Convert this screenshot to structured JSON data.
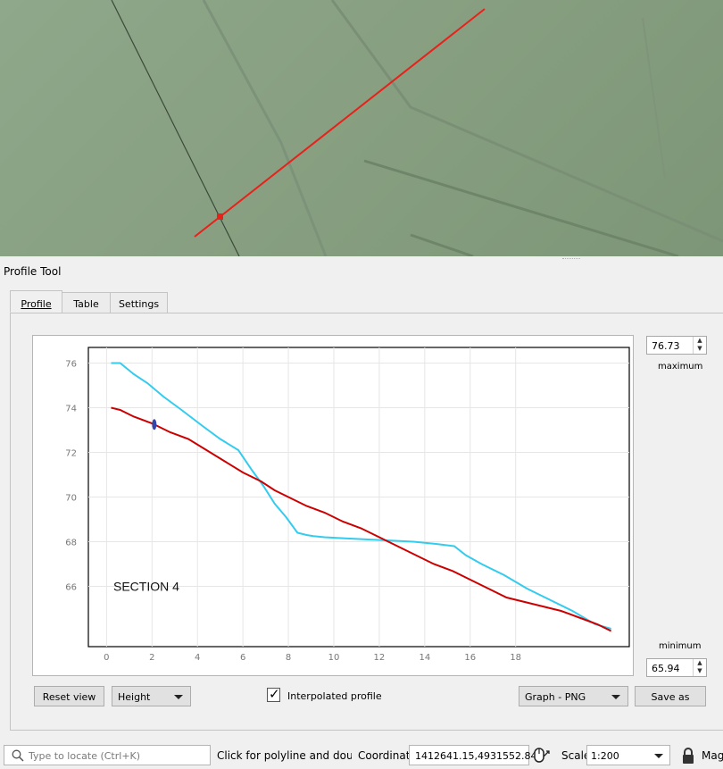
{
  "panel": {
    "title": "Profile Tool"
  },
  "tabs": [
    {
      "label": "Profile",
      "active": true
    },
    {
      "label": "Table",
      "active": false
    },
    {
      "label": "Settings",
      "active": false
    }
  ],
  "axis_controls": {
    "maximum_value": "76.73",
    "maximum_label": "maximum",
    "minimum_value": "65.94",
    "minimum_label": "minimum"
  },
  "controls": {
    "reset_label": "Reset view",
    "plot_variable": "Height",
    "interpolated_checked": true,
    "interpolated_label": "Interpolated profile",
    "export_format": "Graph - PNG",
    "save_label": "Save as"
  },
  "statusbar": {
    "locator_placeholder": "Type to locate (Ctrl+K)",
    "message": "Click for polyline and double clic",
    "coordinate_label": "Coordinate",
    "coordinate_value": "1412641.15,4931552.84",
    "scale_label": "Scale",
    "scale_value": "1:200",
    "magnifier_label": "Magr"
  },
  "colors": {
    "map_background": "#88a081",
    "profile_line": "#e8211b",
    "series_red": "#cc0000",
    "series_cyan": "#33ccee",
    "cursor_marker": "#3344aa"
  },
  "chart_data": {
    "type": "line",
    "annotation": "SECTION 4",
    "xticks": [
      "0",
      "2",
      "4",
      "6",
      "8",
      "10",
      "12",
      "14",
      "16",
      "18"
    ],
    "yticks": [
      "76",
      "74",
      "72",
      "70",
      "68",
      "66"
    ],
    "xlim": [
      -0.8,
      23
    ],
    "ylim": [
      63.3,
      76.7
    ],
    "grid": true,
    "cursor_x": 2.1,
    "series": [
      {
        "color": "#33ccee",
        "x": [
          0.2,
          0.6,
          1.2,
          1.8,
          2.5,
          3.3,
          4.2,
          5.0,
          5.8,
          6.4,
          6.9,
          7.4,
          7.9,
          8.4,
          8.8,
          9.1,
          9.6,
          10.5,
          11.5,
          12.5,
          13.5,
          14.5,
          15.3,
          15.8,
          16.5,
          17.5,
          18.5,
          19.5,
          20.5,
          21.5,
          22.2
        ],
        "y": [
          76.0,
          76.0,
          75.5,
          75.1,
          74.5,
          73.9,
          73.2,
          72.6,
          72.1,
          71.2,
          70.5,
          69.7,
          69.1,
          68.4,
          68.3,
          68.25,
          68.2,
          68.15,
          68.1,
          68.05,
          68.0,
          67.9,
          67.8,
          67.4,
          67.0,
          66.5,
          65.9,
          65.4,
          64.9,
          64.3,
          64.1
        ]
      },
      {
        "color": "#cc0000",
        "x": [
          0.2,
          0.6,
          1.2,
          2.0,
          2.8,
          3.6,
          4.4,
          5.2,
          6.0,
          6.8,
          7.4,
          8.0,
          8.8,
          9.6,
          10.4,
          11.2,
          12.0,
          12.8,
          13.6,
          14.4,
          15.2,
          16.0,
          16.8,
          17.6,
          18.4,
          19.2,
          20.0,
          20.8,
          21.6,
          22.2
        ],
        "y": [
          74.0,
          73.9,
          73.6,
          73.3,
          72.9,
          72.6,
          72.1,
          71.6,
          71.1,
          70.7,
          70.3,
          70.0,
          69.6,
          69.3,
          68.9,
          68.6,
          68.2,
          67.8,
          67.4,
          67.0,
          66.7,
          66.3,
          65.9,
          65.5,
          65.3,
          65.1,
          64.9,
          64.6,
          64.3,
          64.0
        ]
      }
    ]
  }
}
